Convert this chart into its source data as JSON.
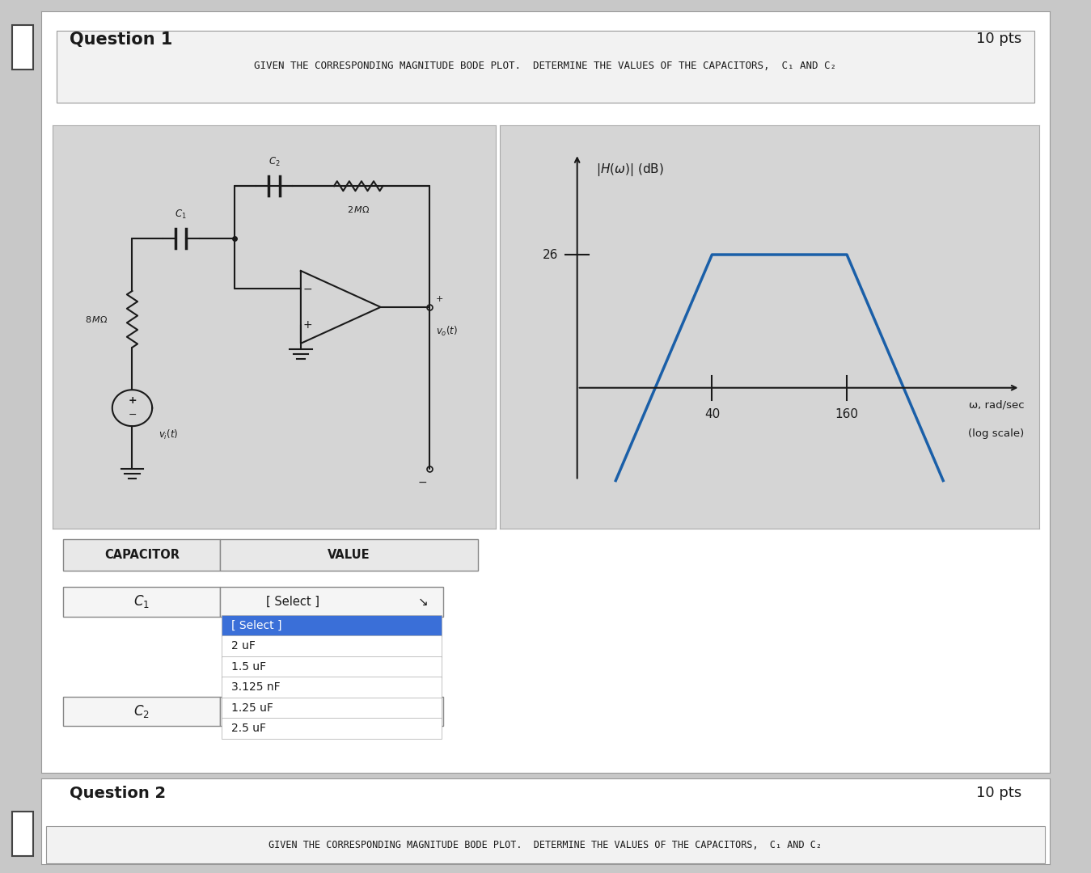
{
  "page_bg": "#c8c8c8",
  "question_bg": "#ffffff",
  "panel_bg": "#d8d8d8",
  "question1_title": "Question 1",
  "question1_pts": "10 pts",
  "problem_statement": "GIVEN THE CORRESPONDING MAGNITUDE BODE PLOT.  DETERMINE THE VALUES OF THE CAPACITORS,  C₁ AND C₂",
  "bode_line_color": "#1a5fa8",
  "bode_ylabel": "|H(ω)| (dB)",
  "bode_xlabel_line1": "ω, rad/sec",
  "bode_xlabel_line2": "(log scale)",
  "bode_yvalue": 26,
  "bode_xtick1": 40,
  "bode_xtick2": 160,
  "table_header1": "CAPACITOR",
  "table_header2": "VALUE",
  "c1_label": "C₁",
  "c2_label": "C₂",
  "dropdown_text": "[ Select ]",
  "dropdown_options": [
    "[ Select ]",
    "2 uF",
    "1.5 uF",
    "3.125 nF",
    "1.25 uF",
    "2.5 uF"
  ],
  "dropdown_highlight_color": "#3a6fd8",
  "question2_title": "Question 2",
  "question2_pts": "10 pts",
  "question2_statement": "GIVEN THE CORRESPONDING MAGNITUDE BODE PLOT.  DETERMINE THE VALUES OF THE CAPACITORS,  C₁ AND C₂"
}
